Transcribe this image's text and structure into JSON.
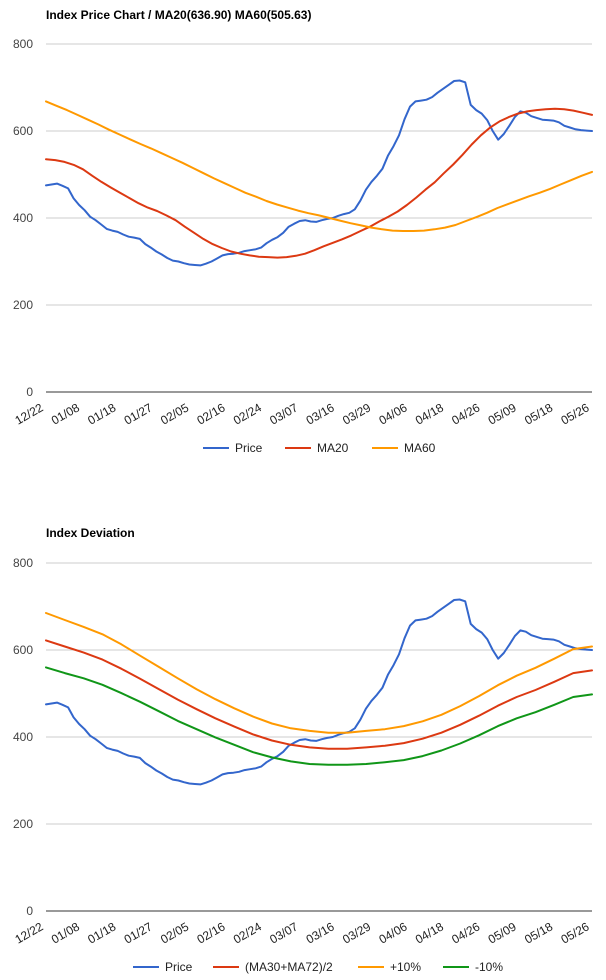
{
  "chart_data": [
    {
      "type": "line",
      "title": "Index Price Chart / MA20(636.90) MA60(505.63)",
      "ylim": [
        0,
        800
      ],
      "yticks": [
        0,
        200,
        400,
        600,
        800
      ],
      "x_labels": [
        "12/22",
        "01/08",
        "01/18",
        "01/27",
        "02/05",
        "02/16",
        "02/24",
        "03/07",
        "03/16",
        "03/29",
        "04/06",
        "04/18",
        "04/26",
        "05/09",
        "05/18",
        "05/26"
      ],
      "n_points": 100,
      "series": [
        {
          "name": "Price",
          "color": "#3366cc",
          "values": [
            475,
            477,
            479,
            474,
            468,
            445,
            430,
            418,
            403,
            395,
            385,
            375,
            371,
            368,
            362,
            357,
            355,
            352,
            340,
            332,
            323,
            316,
            308,
            302,
            300,
            296,
            293,
            292,
            291,
            295,
            300,
            307,
            314,
            317,
            318,
            320,
            324,
            326,
            328,
            332,
            342,
            350,
            356,
            366,
            380,
            387,
            393,
            395,
            392,
            391,
            395,
            398,
            400,
            405,
            409,
            412,
            420,
            440,
            465,
            483,
            497,
            513,
            543,
            565,
            590,
            627,
            656,
            668,
            670,
            672,
            678,
            688,
            697,
            706,
            715,
            716,
            712,
            660,
            648,
            640,
            625,
            600,
            580,
            593,
            612,
            632,
            645,
            642,
            634,
            630,
            626,
            625,
            624,
            620,
            612,
            608,
            604,
            602,
            601,
            600
          ]
        },
        {
          "name": "MA20",
          "color": "#dc3912",
          "values": [
            535,
            533,
            529,
            522,
            512,
            497,
            483,
            470,
            458,
            446,
            434,
            424,
            416,
            406,
            395,
            380,
            366,
            352,
            340,
            331,
            323,
            318,
            314,
            311,
            310,
            309,
            310,
            313,
            318,
            326,
            335,
            343,
            351,
            360,
            370,
            380,
            392,
            403,
            415,
            430,
            447,
            465,
            482,
            503,
            523,
            545,
            569,
            590,
            608,
            622,
            632,
            640,
            645,
            648,
            650,
            651,
            650,
            647,
            642,
            637
          ]
        },
        {
          "name": "MA60",
          "color": "#ff9900",
          "values": [
            668,
            658,
            648,
            637,
            626,
            615,
            603,
            592,
            581,
            570,
            560,
            549,
            538,
            527,
            515,
            503,
            491,
            480,
            469,
            458,
            449,
            439,
            431,
            424,
            417,
            411,
            406,
            400,
            394,
            388,
            383,
            378,
            374,
            371,
            370,
            370,
            371,
            374,
            378,
            384,
            393,
            402,
            412,
            423,
            432,
            441,
            450,
            458,
            467,
            477,
            487,
            497,
            506
          ]
        }
      ],
      "legend": [
        "Price",
        "MA20",
        "MA60"
      ],
      "legend_position": "bottom"
    },
    {
      "type": "line",
      "title": "Index Deviation",
      "ylim": [
        0,
        800
      ],
      "yticks": [
        0,
        200,
        400,
        600,
        800
      ],
      "x_labels": [
        "12/22",
        "01/08",
        "01/18",
        "01/27",
        "02/05",
        "02/16",
        "02/24",
        "03/07",
        "03/16",
        "03/29",
        "04/06",
        "04/18",
        "04/26",
        "05/09",
        "05/18",
        "05/26"
      ],
      "n_points": 100,
      "series": [
        {
          "name": "Price",
          "color": "#3366cc",
          "values": [
            475,
            477,
            479,
            474,
            468,
            445,
            430,
            418,
            403,
            395,
            385,
            375,
            371,
            368,
            362,
            357,
            355,
            352,
            340,
            332,
            323,
            316,
            308,
            302,
            300,
            296,
            293,
            292,
            291,
            295,
            300,
            307,
            314,
            317,
            318,
            320,
            324,
            326,
            328,
            332,
            342,
            350,
            356,
            366,
            380,
            387,
            393,
            395,
            392,
            391,
            395,
            398,
            400,
            405,
            409,
            412,
            420,
            440,
            465,
            483,
            497,
            513,
            543,
            565,
            590,
            627,
            656,
            668,
            670,
            672,
            678,
            688,
            697,
            706,
            715,
            716,
            712,
            660,
            648,
            640,
            625,
            600,
            580,
            593,
            612,
            632,
            645,
            642,
            634,
            630,
            626,
            625,
            624,
            620,
            612,
            608,
            604,
            602,
            601,
            600
          ]
        },
        {
          "name": "(MA30+MA72)/2",
          "color": "#dc3912",
          "values": [
            622,
            608,
            594,
            578,
            557,
            534,
            510,
            486,
            464,
            443,
            424,
            406,
            392,
            382,
            376,
            373,
            373,
            376,
            380,
            386,
            396,
            410,
            428,
            449,
            472,
            492,
            508,
            527,
            547,
            553
          ]
        },
        {
          "name": "+10%",
          "color": "#ff9900",
          "values": [
            685,
            669,
            653,
            636,
            613,
            587,
            561,
            535,
            510,
            487,
            466,
            447,
            431,
            420,
            414,
            410,
            410,
            414,
            418,
            425,
            436,
            451,
            471,
            494,
            519,
            541,
            559,
            580,
            602,
            608
          ]
        },
        {
          "name": "-10%",
          "color": "#109618",
          "values": [
            560,
            547,
            535,
            520,
            501,
            481,
            459,
            437,
            418,
            399,
            382,
            365,
            353,
            344,
            338,
            336,
            336,
            338,
            342,
            347,
            356,
            369,
            385,
            404,
            425,
            443,
            457,
            474,
            492,
            498
          ]
        }
      ],
      "legend": [
        "Price",
        "(MA30+MA72)/2",
        "+10%",
        "-10%"
      ],
      "legend_position": "bottom"
    }
  ]
}
